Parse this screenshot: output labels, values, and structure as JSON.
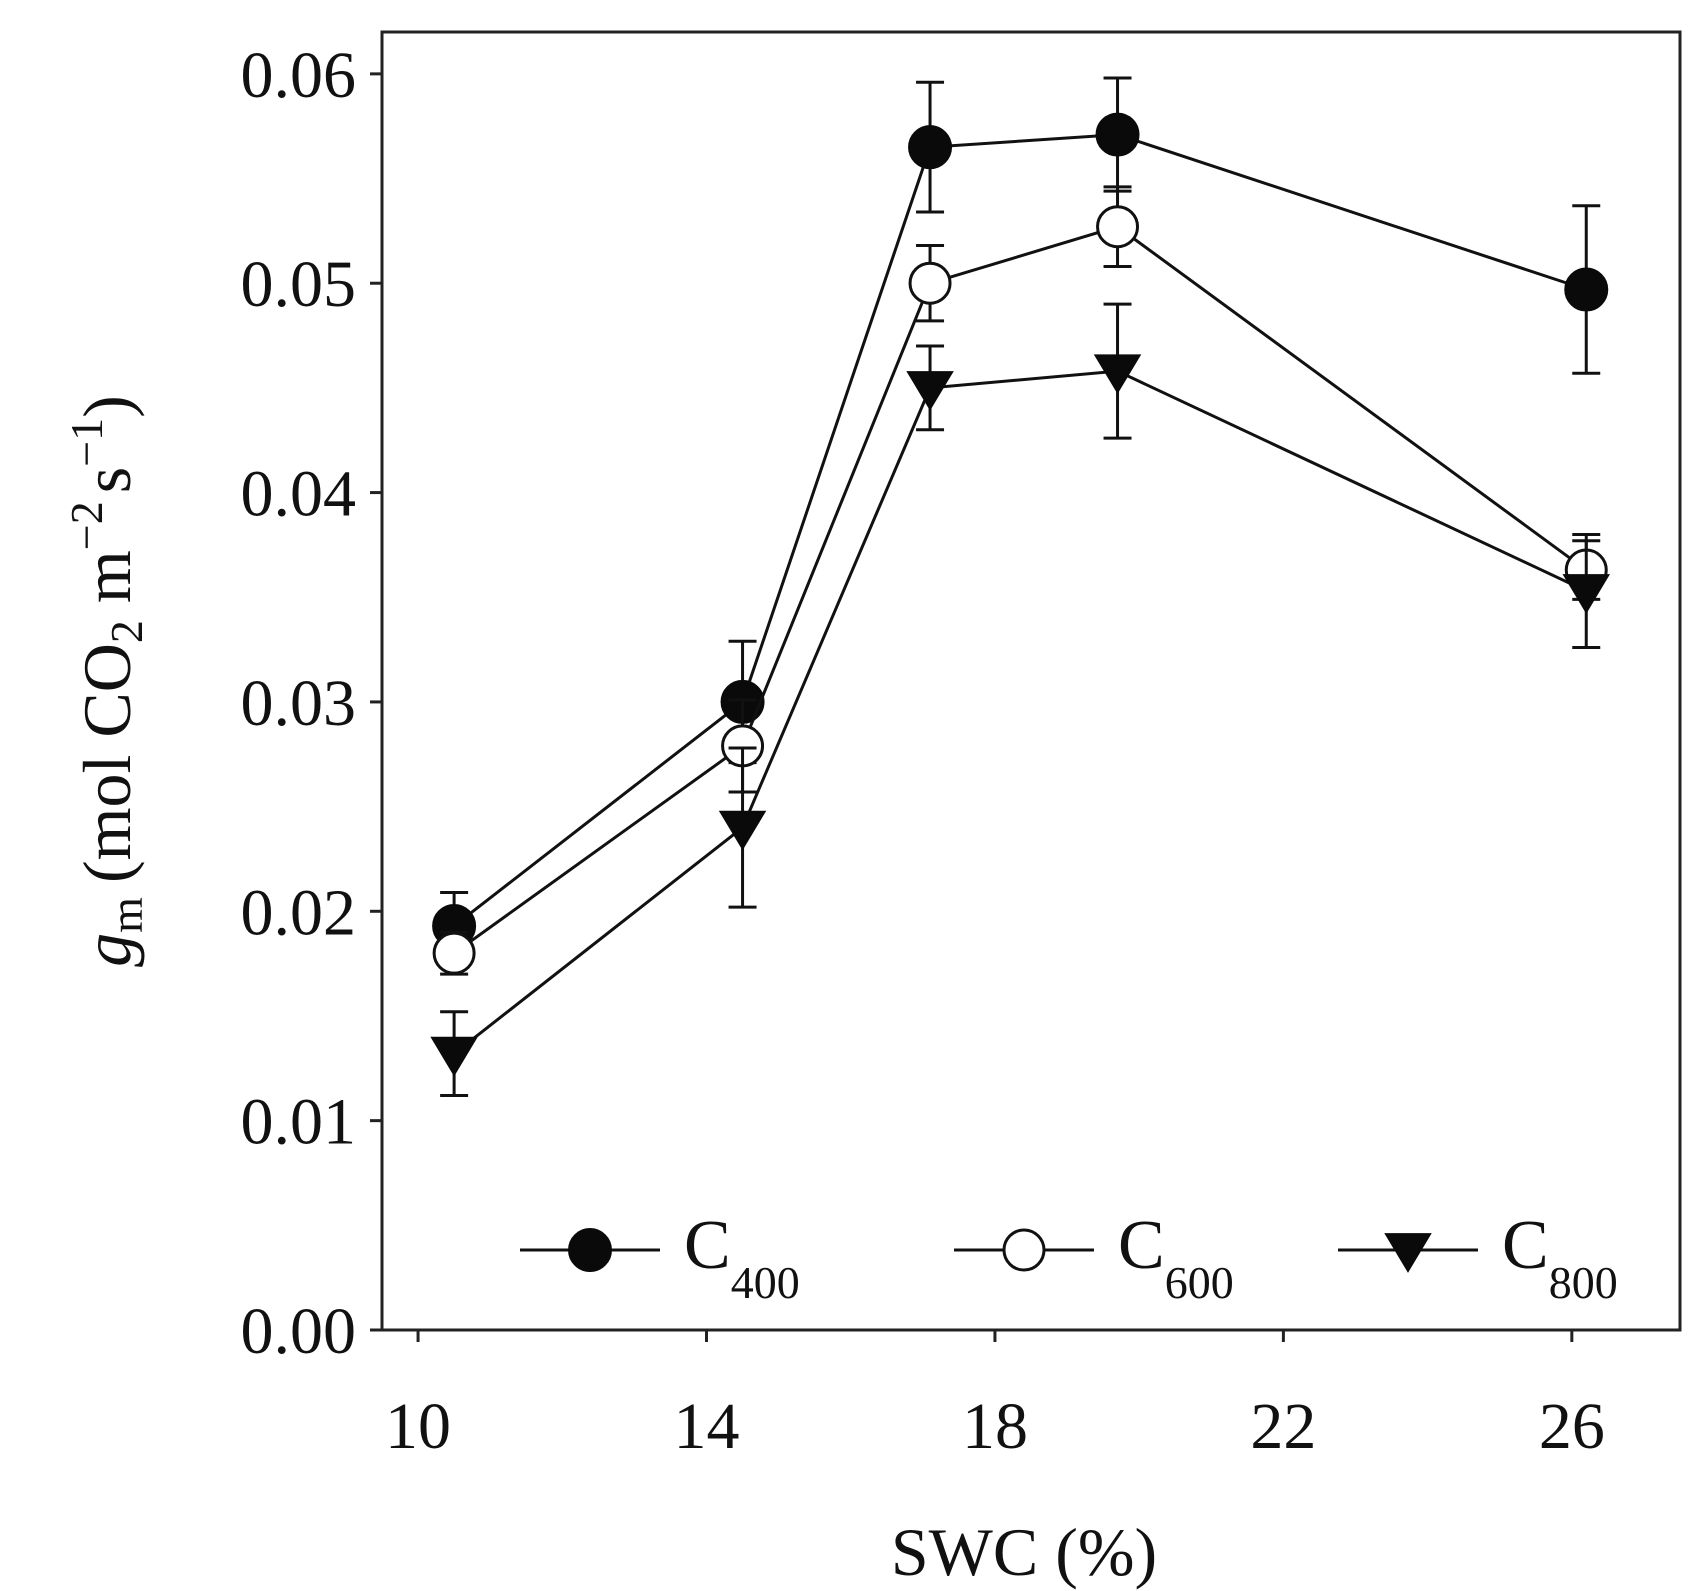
{
  "chart_data": {
    "type": "line",
    "xlabel": "SWC (%)",
    "ylabel": {
      "symbol": "g",
      "symbol_sub": "m",
      "open": "(mol CO",
      "co2_sub": "2",
      "m_text": " m",
      "m_exp": "−2",
      "s_text": "s",
      "s_exp": "−1",
      "close": ")"
    },
    "xlim": [
      9.5,
      27.5
    ],
    "ylim": [
      0.0,
      0.062
    ],
    "x_ticks": [
      10,
      14,
      18,
      22,
      26
    ],
    "x_tick_labels": [
      "10",
      "14",
      "18",
      "22",
      "26"
    ],
    "y_ticks": [
      0.0,
      0.01,
      0.02,
      0.03,
      0.04,
      0.05,
      0.06
    ],
    "y_tick_labels": [
      "0.00",
      "0.01",
      "0.02",
      "0.03",
      "0.04",
      "0.05",
      "0.06"
    ],
    "legend_position": "bottom",
    "series": [
      {
        "name": "C400",
        "label_main": "C",
        "label_sub": "400",
        "marker": "filled-circle",
        "x": [
          10.5,
          14.5,
          17.1,
          19.7,
          26.2
        ],
        "y": [
          0.0193,
          0.03,
          0.0565,
          0.0571,
          0.0497
        ],
        "err": [
          0.0016,
          0.0029,
          0.0031,
          0.0027,
          0.004
        ]
      },
      {
        "name": "C600",
        "label_main": "C",
        "label_sub": "600",
        "marker": "open-circle",
        "x": [
          10.5,
          14.5,
          17.1,
          19.7,
          26.2
        ],
        "y": [
          0.018,
          0.0279,
          0.05,
          0.0527,
          0.0363
        ],
        "err": [
          0.001,
          0.0022,
          0.0018,
          0.0019,
          0.0014
        ]
      },
      {
        "name": "C800",
        "label_main": "C",
        "label_sub": "800",
        "marker": "filled-triangle-down",
        "x": [
          10.5,
          14.5,
          17.1,
          19.7,
          26.2
        ],
        "y": [
          0.0132,
          0.024,
          0.045,
          0.0458,
          0.0353
        ],
        "err": [
          0.002,
          0.0038,
          0.002,
          0.0032,
          0.0027
        ]
      }
    ]
  }
}
